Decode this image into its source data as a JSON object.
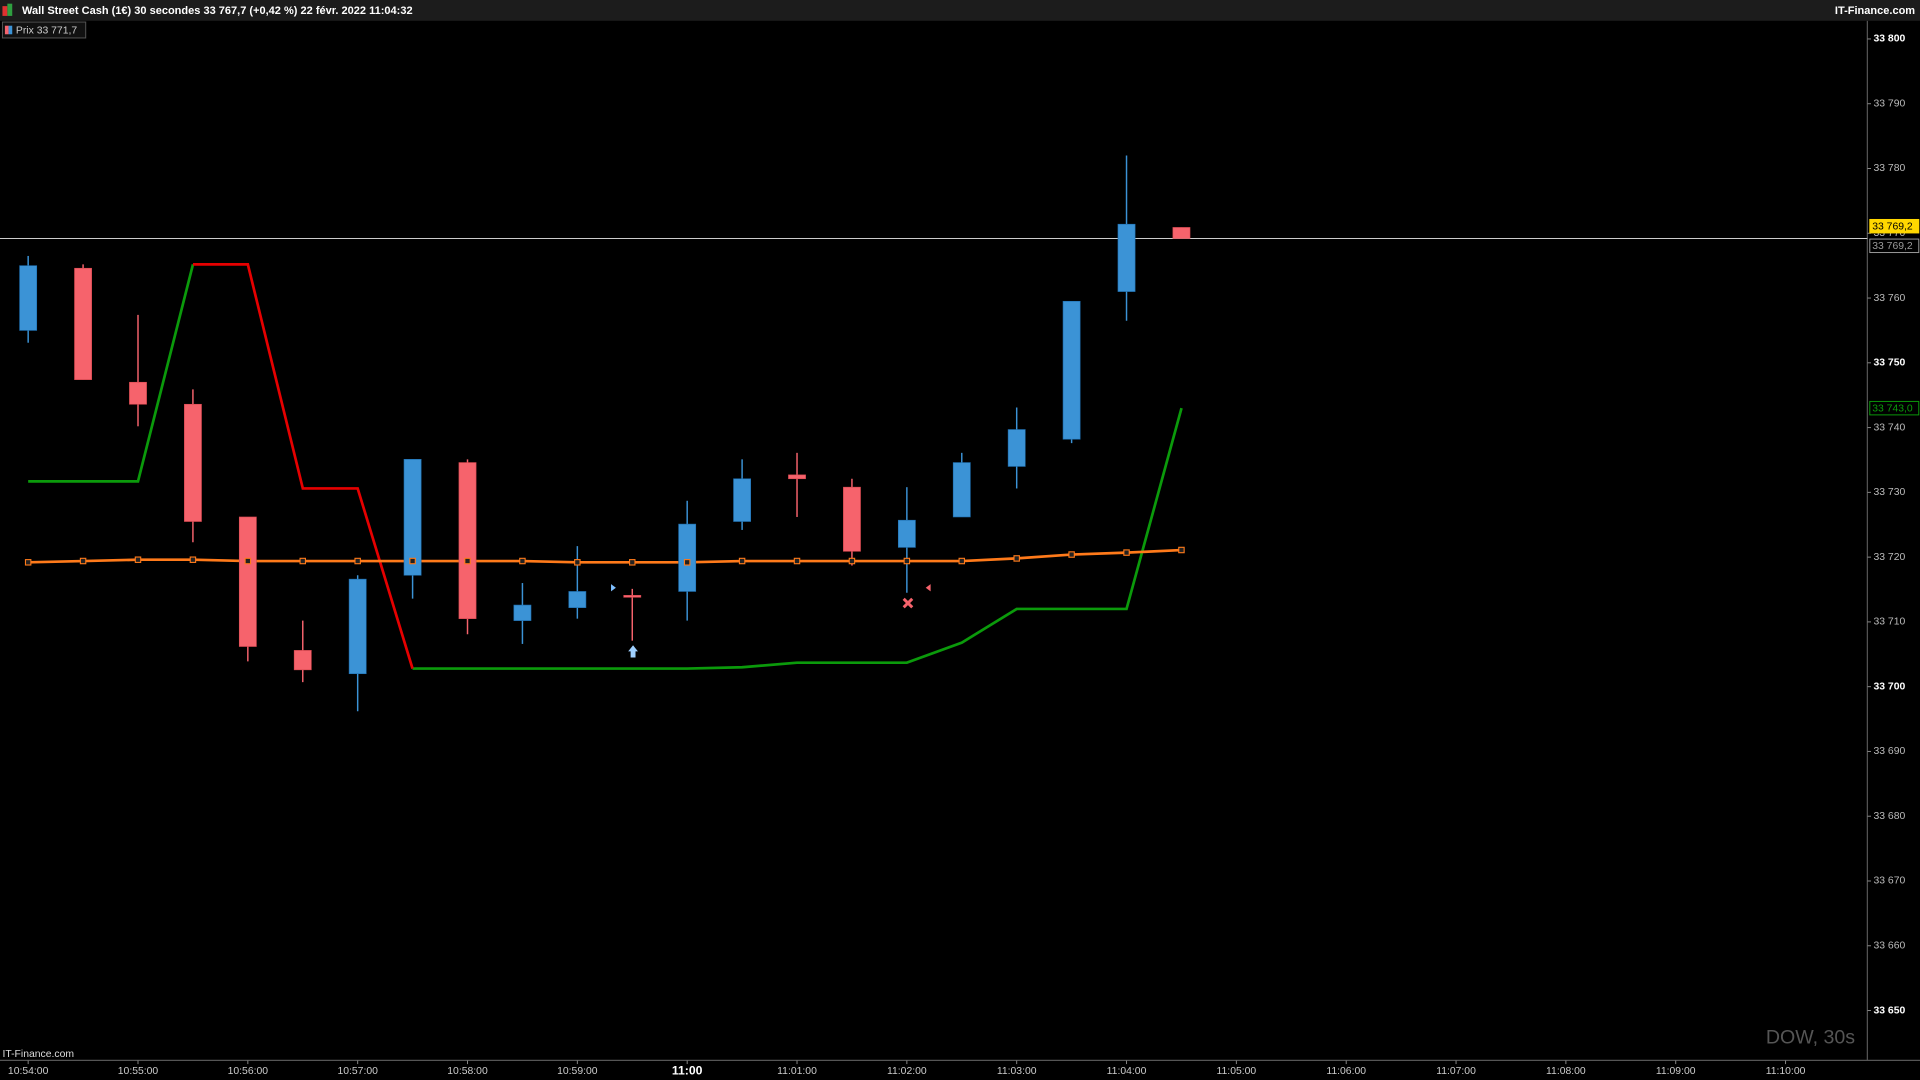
{
  "header": {
    "title": "Wall Street Cash (1€) 30 secondes 33 767,7 (+0,42 %) 22 févr. 2022 11:04:32",
    "brand": "IT-Finance.com"
  },
  "chart_data": {
    "type": "candlestick",
    "legend": "Prix 33 771,7",
    "watermark": "DOW, 30s",
    "source": "IT-Finance.com",
    "open": [
      33755.0,
      33764.6,
      33747.0,
      33743.6,
      33726.2,
      33705.6,
      33702.0,
      33717.2,
      33734.6,
      33710.2,
      33712.2,
      33714.1,
      33714.7,
      33725.5,
      33732.7,
      33730.8,
      33721.5,
      33726.2,
      33734.0,
      33738.2,
      33761.0,
      33770.9
    ],
    "high": [
      33766.5,
      33765.2,
      33757.4,
      33745.9,
      33726.2,
      33710.2,
      33717.2,
      33735.1,
      33735.1,
      33716.0,
      33721.7,
      33715.1,
      33728.7,
      33735.1,
      33736.1,
      33732.1,
      33730.8,
      33736.1,
      33743.1,
      33759.5,
      33782.0,
      33770.9
    ],
    "low": [
      33753.1,
      33747.4,
      33740.2,
      33722.3,
      33703.9,
      33700.7,
      33696.2,
      33713.6,
      33708.1,
      33706.6,
      33710.5,
      33707.1,
      33710.2,
      33724.2,
      33726.2,
      33718.7,
      33714.5,
      33726.2,
      33730.6,
      33737.6,
      33756.5,
      33769.2
    ],
    "close": [
      33765.0,
      33747.4,
      33743.6,
      33725.5,
      33706.2,
      33702.6,
      33716.6,
      33735.1,
      33710.5,
      33712.6,
      33714.7,
      33713.8,
      33725.1,
      33732.1,
      33732.1,
      33720.9,
      33725.7,
      33734.6,
      33739.7,
      33759.5,
      33771.4,
      33769.2
    ],
    "up_color": "#3b93d6",
    "down_color": "#f6636c",
    "series": [
      {
        "color": "#0b9a0b",
        "values": [
          33731.7,
          33731.7,
          33731.7,
          33765.2,
          null,
          null,
          null,
          33702.8,
          33702.8,
          33702.8,
          33702.8,
          33702.8,
          33702.8,
          33703.0,
          33703.7,
          33703.7,
          33703.7,
          33706.8,
          33712.0,
          33712.0,
          33712.0,
          33743.0
        ]
      },
      {
        "color": "#e60000",
        "values": [
          null,
          null,
          null,
          33765.2,
          33765.2,
          33730.6,
          33730.6,
          33702.8,
          null,
          null,
          null,
          null,
          null,
          null,
          null,
          null,
          null,
          null,
          null,
          null,
          null,
          null
        ]
      },
      {
        "color": "#ff7a1a",
        "markers": true,
        "values": [
          33719.2,
          33719.4,
          33719.6,
          33719.6,
          33719.4,
          33719.4,
          33719.4,
          33719.4,
          33719.4,
          33719.4,
          33719.2,
          33719.2,
          33719.2,
          33719.4,
          33719.4,
          33719.4,
          33719.4,
          33719.4,
          33719.8,
          33720.4,
          33720.7,
          33721.1
        ]
      }
    ],
    "ylim": [
      33642.3,
      33802.8
    ],
    "yticks": [
      {
        "value": 33650,
        "label": "33 650"
      },
      {
        "value": 33660,
        "label": "33 660"
      },
      {
        "value": 33670,
        "label": "33 670"
      },
      {
        "value": 33680,
        "label": "33 680"
      },
      {
        "value": 33690,
        "label": "33 690"
      },
      {
        "value": 33700,
        "label": "33 700"
      },
      {
        "value": 33710,
        "label": "33 710"
      },
      {
        "value": 33720,
        "label": "33 720"
      },
      {
        "value": 33730,
        "label": "33 730"
      },
      {
        "value": 33740,
        "label": "33 740"
      },
      {
        "value": 33750,
        "label": "33 750"
      },
      {
        "value": 33760,
        "label": "33 760"
      },
      {
        "value": 33770,
        "label": "33 770"
      },
      {
        "value": 33780,
        "label": "33 780"
      },
      {
        "value": 33790,
        "label": "33 790"
      },
      {
        "value": 33800,
        "label": "33 800"
      }
    ],
    "xticks": [
      "10:54:00",
      "10:55:00",
      "10:56:00",
      "10:57:00",
      "10:58:00",
      "10:59:00",
      "11:00",
      "11:01:00",
      "11:02:00",
      "11:03:00",
      "11:04:00",
      "11:05:00",
      "11:06:00",
      "11:07:00",
      "11:08:00",
      "11:09:00",
      "11:10:00"
    ],
    "price_line": 33769.2,
    "price_tags": [
      {
        "value": 33769.2,
        "label": "33 769,2",
        "color": "#ffd700",
        "filled": true
      },
      {
        "value": 33769.2,
        "label": "33 769,2",
        "color": "#9a9a9a",
        "filled": false
      },
      {
        "value": 33743.0,
        "label": "33 743,0",
        "color": "#0b9a0b",
        "filled": false
      }
    ]
  }
}
